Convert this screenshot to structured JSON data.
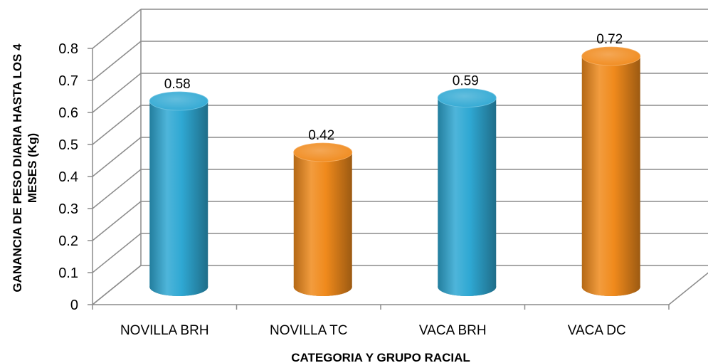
{
  "chart_data": {
    "type": "bar",
    "style": "3d-cylinder",
    "categories": [
      "NOVILLA BRH",
      "NOVILLA TC",
      "VACA BRH",
      "VACA DC"
    ],
    "values": [
      0.58,
      0.42,
      0.59,
      0.72
    ],
    "data_labels": [
      "0.58",
      "0.42",
      "0.59",
      "0.72"
    ],
    "bar_colors": [
      "#2fa8d3",
      "#f08a1c",
      "#2fa8d3",
      "#f08a1c"
    ],
    "title": "",
    "xlabel": "CATEGORIA Y GRUPO RACIAL",
    "ylabel_lines": [
      "GANANCIA DE PESO DIARIA HASTA LOS 4",
      "MESES (Kg)"
    ],
    "ylim": [
      0,
      0.8
    ],
    "yticks": [
      "0",
      "0.1",
      "0.2",
      "0.3",
      "0.4",
      "0.5",
      "0.6",
      "0.7",
      "0.8"
    ],
    "grid": true,
    "legend": "none",
    "grid_color": "#8c8c8c"
  }
}
